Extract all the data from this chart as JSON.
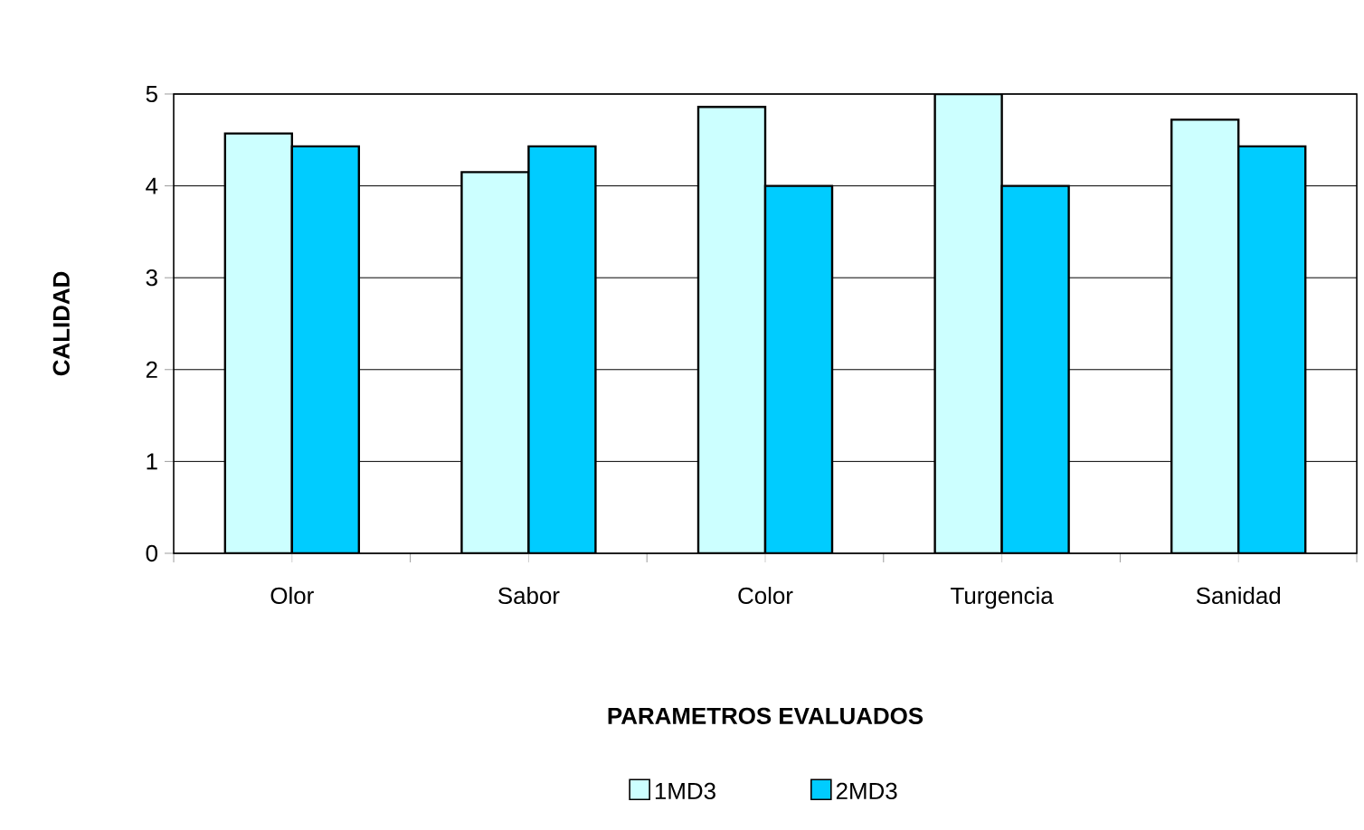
{
  "chart_data": {
    "type": "bar",
    "xlabel": "PARAMETROS EVALUADOS",
    "ylabel": "CALIDAD",
    "categories": [
      "Olor",
      "Sabor",
      "Color",
      "Turgencia",
      "Sanidad"
    ],
    "series": [
      {
        "name": "1MD3",
        "color": "#ccffff",
        "values": [
          4.57,
          4.15,
          4.86,
          5.0,
          4.72
        ]
      },
      {
        "name": "2MD3",
        "color": "#00ccff",
        "values": [
          4.43,
          4.43,
          4.0,
          4.0,
          4.43
        ]
      }
    ],
    "ylim": [
      0,
      5
    ],
    "yticks": [
      0,
      1,
      2,
      3,
      4,
      5
    ],
    "grid": "y",
    "legend": "bottom"
  }
}
